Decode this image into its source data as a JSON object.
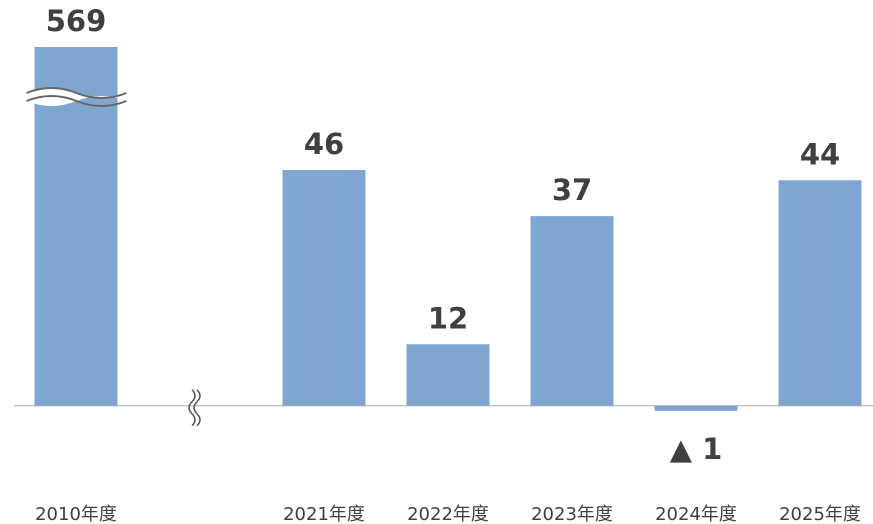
{
  "chart_data": {
    "type": "bar",
    "categories": [
      "2010年度",
      null,
      "2021年度",
      "2022年度",
      "2023年度",
      "2024年度",
      "2025年度"
    ],
    "values": [
      569,
      null,
      46,
      12,
      37,
      -1,
      44
    ],
    "value_labels": [
      "569",
      null,
      "46",
      "12",
      "37",
      "▲ 1",
      "44"
    ],
    "color": "#7fa6d0",
    "ylim": [
      -10,
      70
    ]
  }
}
